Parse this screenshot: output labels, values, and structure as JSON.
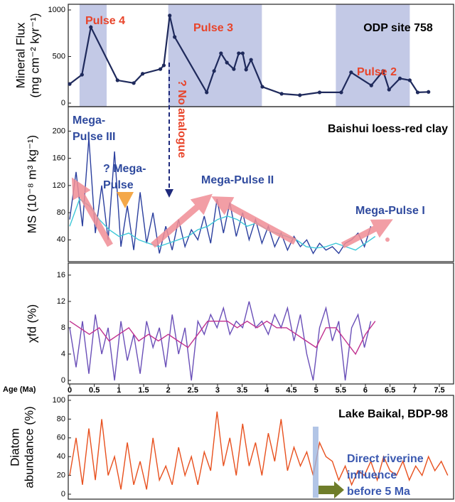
{
  "chart_data": [
    {
      "type": "line",
      "ylabel": [
        "Mineral Flux",
        "(mg cm⁻² kyr⁻¹)"
      ],
      "xlim": [
        0,
        7.76
      ],
      "ylim": [
        0,
        1000
      ],
      "yticks": [
        0,
        500,
        1000
      ],
      "shaded_ranges": [
        [
          0.2,
          0.75
        ],
        [
          2.0,
          3.9
        ],
        [
          5.4,
          6.9
        ]
      ],
      "shade_color": "#c3c9e6",
      "series": [
        {
          "color": "#1f2a5c",
          "markers": true,
          "x": [
            0,
            0.25,
            0.43,
            0.97,
            1.3,
            1.48,
            1.84,
            1.91,
            2.03,
            2.13,
            2.78,
            2.93,
            3.07,
            3.19,
            3.33,
            3.43,
            3.51,
            3.58,
            3.68,
            3.91,
            4.3,
            4.67,
            5.07,
            5.51,
            5.71,
            6.12,
            6.36,
            6.48,
            6.7,
            6.9,
            7.06,
            7.28
          ],
          "values": [
            205,
            305,
            815,
            245,
            215,
            315,
            365,
            405,
            940,
            710,
            115,
            345,
            535,
            435,
            365,
            535,
            535,
            360,
            465,
            175,
            100,
            85,
            115,
            115,
            330,
            190,
            345,
            145,
            265,
            245,
            115,
            120
          ]
        }
      ],
      "annotations": [
        {
          "lines": [
            "Pulse 4"
          ],
          "color": "#e8442a"
        },
        {
          "lines": [
            "Pulse 3"
          ],
          "color": "#e8442a"
        },
        {
          "lines": [
            "Pulse 2"
          ],
          "color": "#e8442a"
        },
        {
          "lines": [
            "ODP site 758"
          ],
          "color": "#000000"
        }
      ]
    },
    {
      "type": "line",
      "ylabel": [
        "MS (10⁻⁸ m³ kg⁻¹)"
      ],
      "xlim": [
        0,
        7.76
      ],
      "ylim": [
        10,
        236
      ],
      "yticks": [
        40,
        80,
        120,
        160,
        200
      ],
      "series": [
        {
          "color": "#2b3f9e",
          "x": [
            0,
            0.13,
            0.26,
            0.39,
            0.52,
            0.65,
            0.78,
            0.91,
            1.04,
            1.17,
            1.3,
            1.43,
            1.56,
            1.69,
            1.82,
            1.95,
            2.08,
            2.21,
            2.34,
            2.47,
            2.6,
            2.73,
            2.86,
            2.99,
            3.12,
            3.25,
            3.38,
            3.51,
            3.64,
            3.77,
            3.9,
            4.03,
            4.16,
            4.29,
            4.42,
            4.55,
            4.68,
            4.81,
            4.94,
            5.07,
            5.2,
            5.33,
            5.46,
            5.59,
            5.72,
            5.85,
            5.98,
            6.11
          ],
          "values": [
            70,
            140,
            60,
            190,
            50,
            120,
            40,
            170,
            30,
            90,
            25,
            110,
            35,
            80,
            20,
            60,
            25,
            70,
            30,
            55,
            40,
            75,
            35,
            100,
            50,
            95,
            45,
            80,
            40,
            70,
            35,
            60,
            30,
            50,
            25,
            45,
            30,
            40,
            20,
            35,
            25,
            30,
            20,
            35,
            40,
            50,
            30,
            60
          ]
        },
        {
          "color": "#3ec8d8",
          "x": [
            0,
            0.2,
            0.4,
            0.6,
            0.8,
            1.0,
            1.2,
            1.4,
            1.6,
            1.8,
            2.0,
            2.2,
            2.4,
            2.6,
            2.8,
            3.0,
            3.2,
            3.4,
            3.6,
            3.8,
            4.0,
            4.2,
            4.4,
            4.6,
            4.8,
            5.0,
            5.2,
            5.4,
            5.6,
            5.8,
            6.0,
            6.2
          ],
          "values": [
            60,
            100,
            90,
            70,
            55,
            45,
            50,
            40,
            35,
            30,
            35,
            40,
            45,
            55,
            60,
            70,
            75,
            70,
            60,
            65,
            55,
            50,
            45,
            40,
            30,
            28,
            30,
            35,
            30,
            25,
            35,
            45
          ]
        }
      ],
      "annotations": [
        {
          "lines": [
            "Mega-",
            "Pulse III"
          ],
          "color": "#2f4a9e"
        },
        {
          "lines": [
            "? Mega-",
            "Pulse"
          ],
          "color": "#2f4a9e"
        },
        {
          "lines": [
            "Mega-Pulse II"
          ],
          "color": "#2f4a9e"
        },
        {
          "lines": [
            "Mega-Pulse I"
          ],
          "color": "#2f4a9e"
        },
        {
          "lines": [
            "Baishui loess-red clay"
          ],
          "color": "#000000"
        },
        {
          "lines": [
            "? No analogue"
          ],
          "color": "#e8442a"
        }
      ]
    },
    {
      "type": "line",
      "ylabel": [
        "χfd (%)"
      ],
      "xlabel": "Age (Ma)",
      "xlim": [
        0,
        7.76
      ],
      "xticks": [
        0,
        0.5,
        1,
        1.5,
        2,
        2.5,
        3,
        3.5,
        4,
        4.5,
        5,
        5.5,
        6,
        6.5,
        7,
        7.5
      ],
      "ylim": [
        0,
        17.5
      ],
      "yticks": [
        0,
        4,
        8,
        12,
        16
      ],
      "series": [
        {
          "color": "#6a4fb8",
          "x": [
            0,
            0.13,
            0.26,
            0.39,
            0.52,
            0.65,
            0.78,
            0.91,
            1.04,
            1.17,
            1.3,
            1.43,
            1.56,
            1.69,
            1.82,
            1.95,
            2.08,
            2.21,
            2.34,
            2.47,
            2.6,
            2.73,
            2.86,
            2.99,
            3.12,
            3.25,
            3.38,
            3.51,
            3.64,
            3.77,
            3.9,
            4.03,
            4.16,
            4.29,
            4.42,
            4.55,
            4.68,
            4.81,
            4.94,
            5.07,
            5.2,
            5.33,
            5.46,
            5.59,
            5.72,
            5.85,
            5.98,
            6.11
          ],
          "values": [
            8,
            2,
            9,
            1,
            10,
            4,
            8,
            0,
            9,
            3,
            7,
            1,
            9,
            5,
            8,
            2,
            10,
            4,
            8,
            0,
            9,
            7,
            10,
            8,
            11,
            7,
            9,
            8,
            12,
            8,
            9,
            7,
            10,
            8,
            11,
            6,
            10,
            4,
            0,
            8,
            11,
            6,
            9,
            0,
            8,
            10,
            5,
            9
          ]
        },
        {
          "color": "#c0308f",
          "x": [
            0,
            0.2,
            0.4,
            0.6,
            0.8,
            1.0,
            1.2,
            1.4,
            1.6,
            1.8,
            2.0,
            2.2,
            2.4,
            2.6,
            2.8,
            3.0,
            3.2,
            3.4,
            3.6,
            3.8,
            4.0,
            4.2,
            4.4,
            4.6,
            4.8,
            5.0,
            5.2,
            5.4,
            5.6,
            5.8,
            6.0,
            6.2
          ],
          "values": [
            9,
            8,
            7,
            8,
            6,
            7,
            8,
            6,
            7,
            6,
            7,
            6,
            5,
            7,
            9,
            9,
            9,
            8,
            9,
            8,
            9,
            8,
            8,
            7,
            6,
            5,
            8,
            8,
            6,
            4,
            7,
            9
          ]
        }
      ],
      "annotations": []
    },
    {
      "type": "line",
      "ylabel": [
        "Diatom",
        "abundance (%)"
      ],
      "xlim": [
        0,
        7.76
      ],
      "ylim": [
        0,
        100
      ],
      "yticks": [
        0,
        20,
        40,
        60,
        80,
        100
      ],
      "series": [
        {
          "color": "#e8501e",
          "x": [
            0,
            0.13,
            0.26,
            0.39,
            0.52,
            0.65,
            0.78,
            0.91,
            1.04,
            1.17,
            1.3,
            1.43,
            1.56,
            1.69,
            1.82,
            1.95,
            2.08,
            2.21,
            2.34,
            2.47,
            2.6,
            2.73,
            2.86,
            2.99,
            3.12,
            3.25,
            3.38,
            3.51,
            3.64,
            3.77,
            3.9,
            4.03,
            4.16,
            4.29,
            4.42,
            4.55,
            4.68,
            4.81,
            4.94,
            5.07,
            5.2,
            5.33,
            5.46,
            5.59,
            5.72,
            5.85,
            5.98,
            6.11,
            6.24,
            6.37,
            6.5,
            6.63,
            6.76,
            6.89,
            7.02,
            7.15,
            7.28,
            7.41,
            7.54,
            7.67
          ],
          "values": [
            20,
            60,
            10,
            70,
            15,
            80,
            20,
            40,
            5,
            55,
            10,
            35,
            5,
            60,
            15,
            30,
            10,
            50,
            20,
            40,
            10,
            45,
            25,
            88,
            30,
            60,
            20,
            75,
            30,
            55,
            20,
            65,
            35,
            80,
            25,
            50,
            30,
            45,
            20,
            55,
            40,
            35,
            15,
            30,
            10,
            25,
            20,
            35,
            15,
            40,
            25,
            20,
            35,
            15,
            30,
            20,
            40,
            25,
            35,
            20
          ]
        }
      ],
      "annotations": [
        {
          "lines": [
            "Lake Baikal, BDP-98"
          ],
          "color": "#000000"
        },
        {
          "lines": [
            "Direct riverine",
            "influence",
            "before 5 Ma"
          ],
          "color": "#3a58b0"
        }
      ]
    }
  ]
}
